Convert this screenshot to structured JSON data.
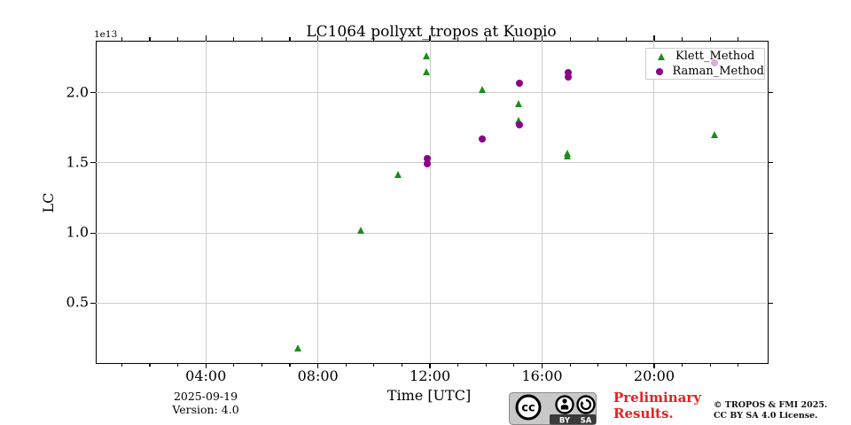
{
  "title": "LC1064 pollyxt_tropos at Kuopio",
  "offset_label": "1e13",
  "ylabel": "LC",
  "xlabel": "Time [UTC]",
  "footer": {
    "date": "2025-09-19",
    "version": "Version: 4.0",
    "preliminary_line1": "Preliminary",
    "preliminary_line2": "Results.",
    "copyright_line1": "© TROPOS & FMI 2025.",
    "copyright_line2": "CC BY SA 4.0 License.",
    "cc_badge": {
      "cc_text": "cc",
      "label_by": "BY",
      "label_sa": "SA"
    }
  },
  "colors": {
    "klett_green": "#1f8b1f",
    "raman_purple": "#8b008b",
    "grid_gray": "#cccccc",
    "preliminary_red": "#e32222",
    "badge_gray": "#c8c8c8",
    "badge_dark": "#3a3a3a"
  },
  "legend": {
    "items": [
      {
        "label": "Klett_Method",
        "marker": "triangle",
        "color": "#1f8b1f"
      },
      {
        "label": "Raman_Method",
        "marker": "circle",
        "color": "#8b008b"
      }
    ]
  },
  "chart_data": {
    "type": "scatter",
    "title": "LC1064 pollyxt_tropos at Kuopio",
    "xlabel": "Time [UTC]",
    "ylabel": "LC",
    "y_offset_multiplier": "1e13",
    "grid": true,
    "legend_position": "upper right",
    "xlim_hours": [
      0.07,
      24.02
    ],
    "ylim": [
      0.08,
      2.37
    ],
    "xticks": [
      {
        "h": 4,
        "label": "04:00"
      },
      {
        "h": 8,
        "label": "08:00"
      },
      {
        "h": 12,
        "label": "12:00"
      },
      {
        "h": 16,
        "label": "16:00"
      },
      {
        "h": 20,
        "label": "20:00"
      }
    ],
    "minor_xticks_every_hours": 1,
    "yticks": [
      {
        "v": 0.5,
        "label": "0.5"
      },
      {
        "v": 1.0,
        "label": "1.0"
      },
      {
        "v": 1.5,
        "label": "1.5"
      },
      {
        "v": 2.0,
        "label": "2.0"
      }
    ],
    "series": [
      {
        "name": "Klett_Method",
        "marker": "triangle",
        "color": "#1f8b1f",
        "points": [
          {
            "time": "07:19",
            "t": 7.31,
            "v": 0.18
          },
          {
            "time": "09:34",
            "t": 9.56,
            "v": 1.02
          },
          {
            "time": "10:52",
            "t": 10.86,
            "v": 1.42
          },
          {
            "time": "11:53",
            "t": 11.89,
            "v": 2.26
          },
          {
            "time": "11:53",
            "t": 11.89,
            "v": 2.15
          },
          {
            "time": "13:53",
            "t": 13.88,
            "v": 2.02
          },
          {
            "time": "15:11",
            "t": 15.18,
            "v": 1.92
          },
          {
            "time": "15:11",
            "t": 15.18,
            "v": 1.8
          },
          {
            "time": "16:56",
            "t": 16.93,
            "v": 1.57
          },
          {
            "time": "16:56",
            "t": 16.93,
            "v": 1.55
          },
          {
            "time": "22:10",
            "t": 22.16,
            "v": 1.7
          }
        ]
      },
      {
        "name": "Raman_Method",
        "marker": "circle",
        "color": "#8b008b",
        "points": [
          {
            "time": "11:53",
            "t": 11.89,
            "v": 1.53
          },
          {
            "time": "11:53",
            "t": 11.89,
            "v": 1.49
          },
          {
            "time": "13:53",
            "t": 13.88,
            "v": 1.67
          },
          {
            "time": "15:11",
            "t": 15.18,
            "v": 2.07
          },
          {
            "time": "15:11",
            "t": 15.18,
            "v": 1.77
          },
          {
            "time": "16:56",
            "t": 16.93,
            "v": 2.14
          },
          {
            "time": "16:56",
            "t": 16.93,
            "v": 2.11
          },
          {
            "time": "22:10",
            "t": 22.16,
            "v": 2.21,
            "faint": true
          }
        ]
      }
    ]
  }
}
